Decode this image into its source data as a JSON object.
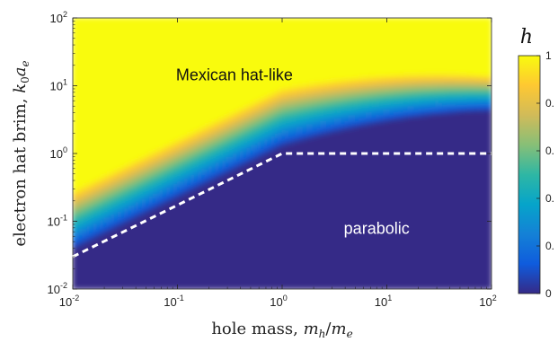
{
  "chart_data": {
    "type": "heatmap",
    "title": "",
    "xlabel_text": "hole mass, ",
    "xlabel_math": "m",
    "xlabel_sub1": "h",
    "xlabel_sep": "/",
    "xlabel_math2": "m",
    "xlabel_sub2": "e",
    "ylabel_text": "electron hat brim, ",
    "ylabel_math": "k",
    "ylabel_sub0": "0",
    "ylabel_math2": "a",
    "ylabel_sub2": "e",
    "x_scale": "log",
    "y_scale": "log",
    "xlim": [
      0.01,
      100
    ],
    "ylim": [
      0.01,
      100
    ],
    "x_ticks": [
      {
        "base": "10",
        "exp": "-2"
      },
      {
        "base": "10",
        "exp": "-1"
      },
      {
        "base": "10",
        "exp": "0"
      },
      {
        "base": "10",
        "exp": "1"
      },
      {
        "base": "10",
        "exp": "2"
      }
    ],
    "y_ticks": [
      {
        "base": "10",
        "exp": "-2"
      },
      {
        "base": "10",
        "exp": "-1"
      },
      {
        "base": "10",
        "exp": "0"
      },
      {
        "base": "10",
        "exp": "1"
      },
      {
        "base": "10",
        "exp": "2"
      }
    ],
    "boundary_line": {
      "style": "dashed",
      "color": "#ffffff",
      "points": [
        [
          0.01,
          0.03
        ],
        [
          1,
          1
        ],
        [
          100,
          1
        ]
      ]
    },
    "annotations": [
      {
        "text": "Mexican hat-like",
        "x": 0.35,
        "y": 12,
        "color": "#111111"
      },
      {
        "text": "parabolic",
        "x": 8,
        "y": 0.065,
        "color": "#ffffff"
      }
    ],
    "colorbar": {
      "label": "h",
      "range": [
        0,
        1
      ],
      "tick_labels": [
        "1",
        "0.",
        "0.",
        "0.",
        "0.",
        "0"
      ],
      "colormap": "parula",
      "stops": [
        "#352a87",
        "#0f5cdd",
        "#1481d6",
        "#06a4ca",
        "#2eb7a4",
        "#87bf77",
        "#d1bb59",
        "#fec832",
        "#f9fb0e"
      ]
    },
    "grid": false
  }
}
